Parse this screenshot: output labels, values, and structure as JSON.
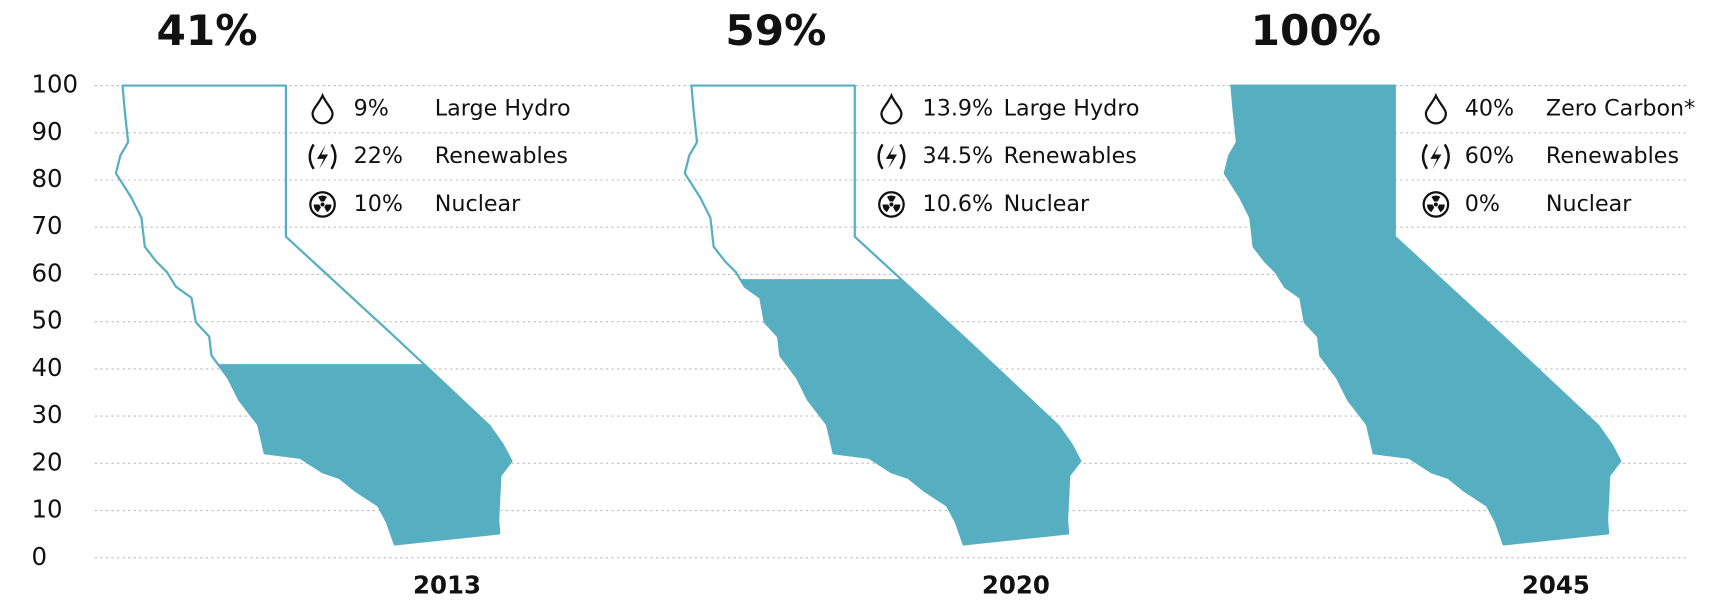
{
  "chart_data": {
    "type": "pictorial",
    "categories": [
      "2013",
      "2020",
      "2045"
    ],
    "values": [
      41,
      59,
      100
    ],
    "value_labels": [
      "41%",
      "59%",
      "100%"
    ],
    "color": "#56afc0",
    "ylim": [
      0,
      100
    ],
    "yticks": [
      0,
      10,
      20,
      30,
      40,
      50,
      60,
      70,
      80,
      90,
      100
    ],
    "grid": true,
    "breakdown": [
      {
        "names": [
          "Large Hydro",
          "Renewables",
          "Nuclear"
        ],
        "values": [
          9,
          22,
          10
        ],
        "value_labels": [
          "9%",
          "22%",
          "10%"
        ]
      },
      {
        "names": [
          "Large Hydro",
          "Renewables",
          "Nuclear"
        ],
        "values": [
          13.9,
          34.5,
          10.6
        ],
        "value_labels": [
          "13.9%",
          "34.5%",
          "10.6%"
        ]
      },
      {
        "names": [
          "Zero Carbon*",
          "Renewables",
          "Nuclear"
        ],
        "values": [
          40,
          60,
          0
        ],
        "value_labels": [
          "40%",
          "60%",
          "0%"
        ]
      }
    ]
  }
}
